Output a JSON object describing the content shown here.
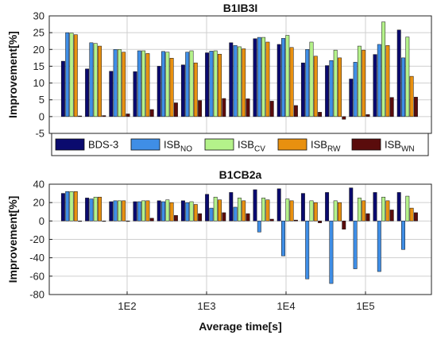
{
  "chart_data": [
    {
      "type": "bar",
      "title": "B1IB3I",
      "ylabel": "Improvement[%]",
      "xlabel": "",
      "ylim": [
        -5,
        30
      ],
      "yticks": [
        -5,
        0,
        5,
        10,
        15,
        20,
        25,
        30
      ],
      "grid": true,
      "series": [
        {
          "name": "BDS-3",
          "color": "#0a0a6e",
          "values": [
            16.5,
            14.2,
            13.5,
            13.4,
            15.0,
            15.4,
            19.0,
            22.0,
            23.2,
            21.5,
            16.0,
            15.2,
            11.2,
            18.5,
            25.8
          ]
        },
        {
          "name": "ISB_NO",
          "color": "#3f8ee6",
          "values": [
            25.0,
            22.0,
            20.0,
            19.6,
            19.4,
            19.2,
            19.5,
            21.2,
            23.6,
            23.3,
            20.0,
            16.7,
            16.2,
            21.5,
            17.5
          ]
        },
        {
          "name": "ISB_CV",
          "color": "#b4f28a",
          "values": [
            24.9,
            21.8,
            20.0,
            19.6,
            19.2,
            19.6,
            19.6,
            20.8,
            23.6,
            24.2,
            22.2,
            19.8,
            21.0,
            28.2,
            23.7
          ]
        },
        {
          "name": "ISB_RW",
          "color": "#e8900f",
          "values": [
            24.4,
            21.0,
            19.2,
            18.8,
            17.4,
            16.0,
            18.6,
            20.2,
            22.2,
            20.6,
            18.0,
            17.5,
            19.8,
            21.2,
            12.0
          ]
        },
        {
          "name": "ISB_WN",
          "color": "#5a0c0c",
          "values": [
            0.2,
            0.3,
            0.8,
            2.1,
            4.1,
            4.8,
            5.4,
            5.3,
            4.6,
            3.3,
            1.3,
            -0.8,
            0.6,
            5.7,
            5.8
          ]
        }
      ]
    },
    {
      "type": "bar",
      "title": "B1CB2a",
      "ylabel": "Improvement[%]",
      "xlabel": "Average time[s]",
      "ylim": [
        -80,
        40
      ],
      "yticks": [
        -80,
        -60,
        -40,
        -20,
        0,
        20,
        40
      ],
      "xticks": [
        "1E2",
        "1E3",
        "1E4",
        "1E5"
      ],
      "grid": true,
      "series": [
        {
          "name": "BDS-3",
          "color": "#0a0a6e",
          "values": [
            30,
            25,
            21,
            21,
            22,
            22,
            29,
            31,
            34,
            35,
            30,
            31,
            36,
            31,
            31
          ]
        },
        {
          "name": "ISB_NO",
          "color": "#3f8ee6",
          "values": [
            32,
            24,
            22,
            21,
            21,
            20,
            14,
            15,
            -12,
            -38,
            -63,
            -68,
            -52,
            -55,
            -31
          ]
        },
        {
          "name": "ISB_CV",
          "color": "#b4f28a",
          "values": [
            32,
            26,
            22,
            22,
            23,
            21,
            26,
            25,
            25,
            24,
            22,
            22,
            25,
            26,
            27
          ]
        },
        {
          "name": "ISB_RW",
          "color": "#e8900f",
          "values": [
            32,
            26,
            22,
            22,
            20,
            18,
            23,
            22,
            23,
            22,
            20,
            20,
            22,
            22,
            14
          ]
        },
        {
          "name": "ISB_WN",
          "color": "#5a0c0c",
          "values": [
            0,
            0,
            0,
            3,
            6,
            8,
            9,
            8,
            2,
            1,
            -2,
            -9,
            8,
            12,
            9
          ]
        }
      ]
    }
  ],
  "legend": {
    "placement": "between-panels",
    "entries": [
      {
        "base": "BDS-3",
        "sub": ""
      },
      {
        "base": "ISB",
        "sub": "NO"
      },
      {
        "base": "ISB",
        "sub": "CV"
      },
      {
        "base": "ISB",
        "sub": "RW"
      },
      {
        "base": "ISB",
        "sub": "WN"
      }
    ]
  }
}
